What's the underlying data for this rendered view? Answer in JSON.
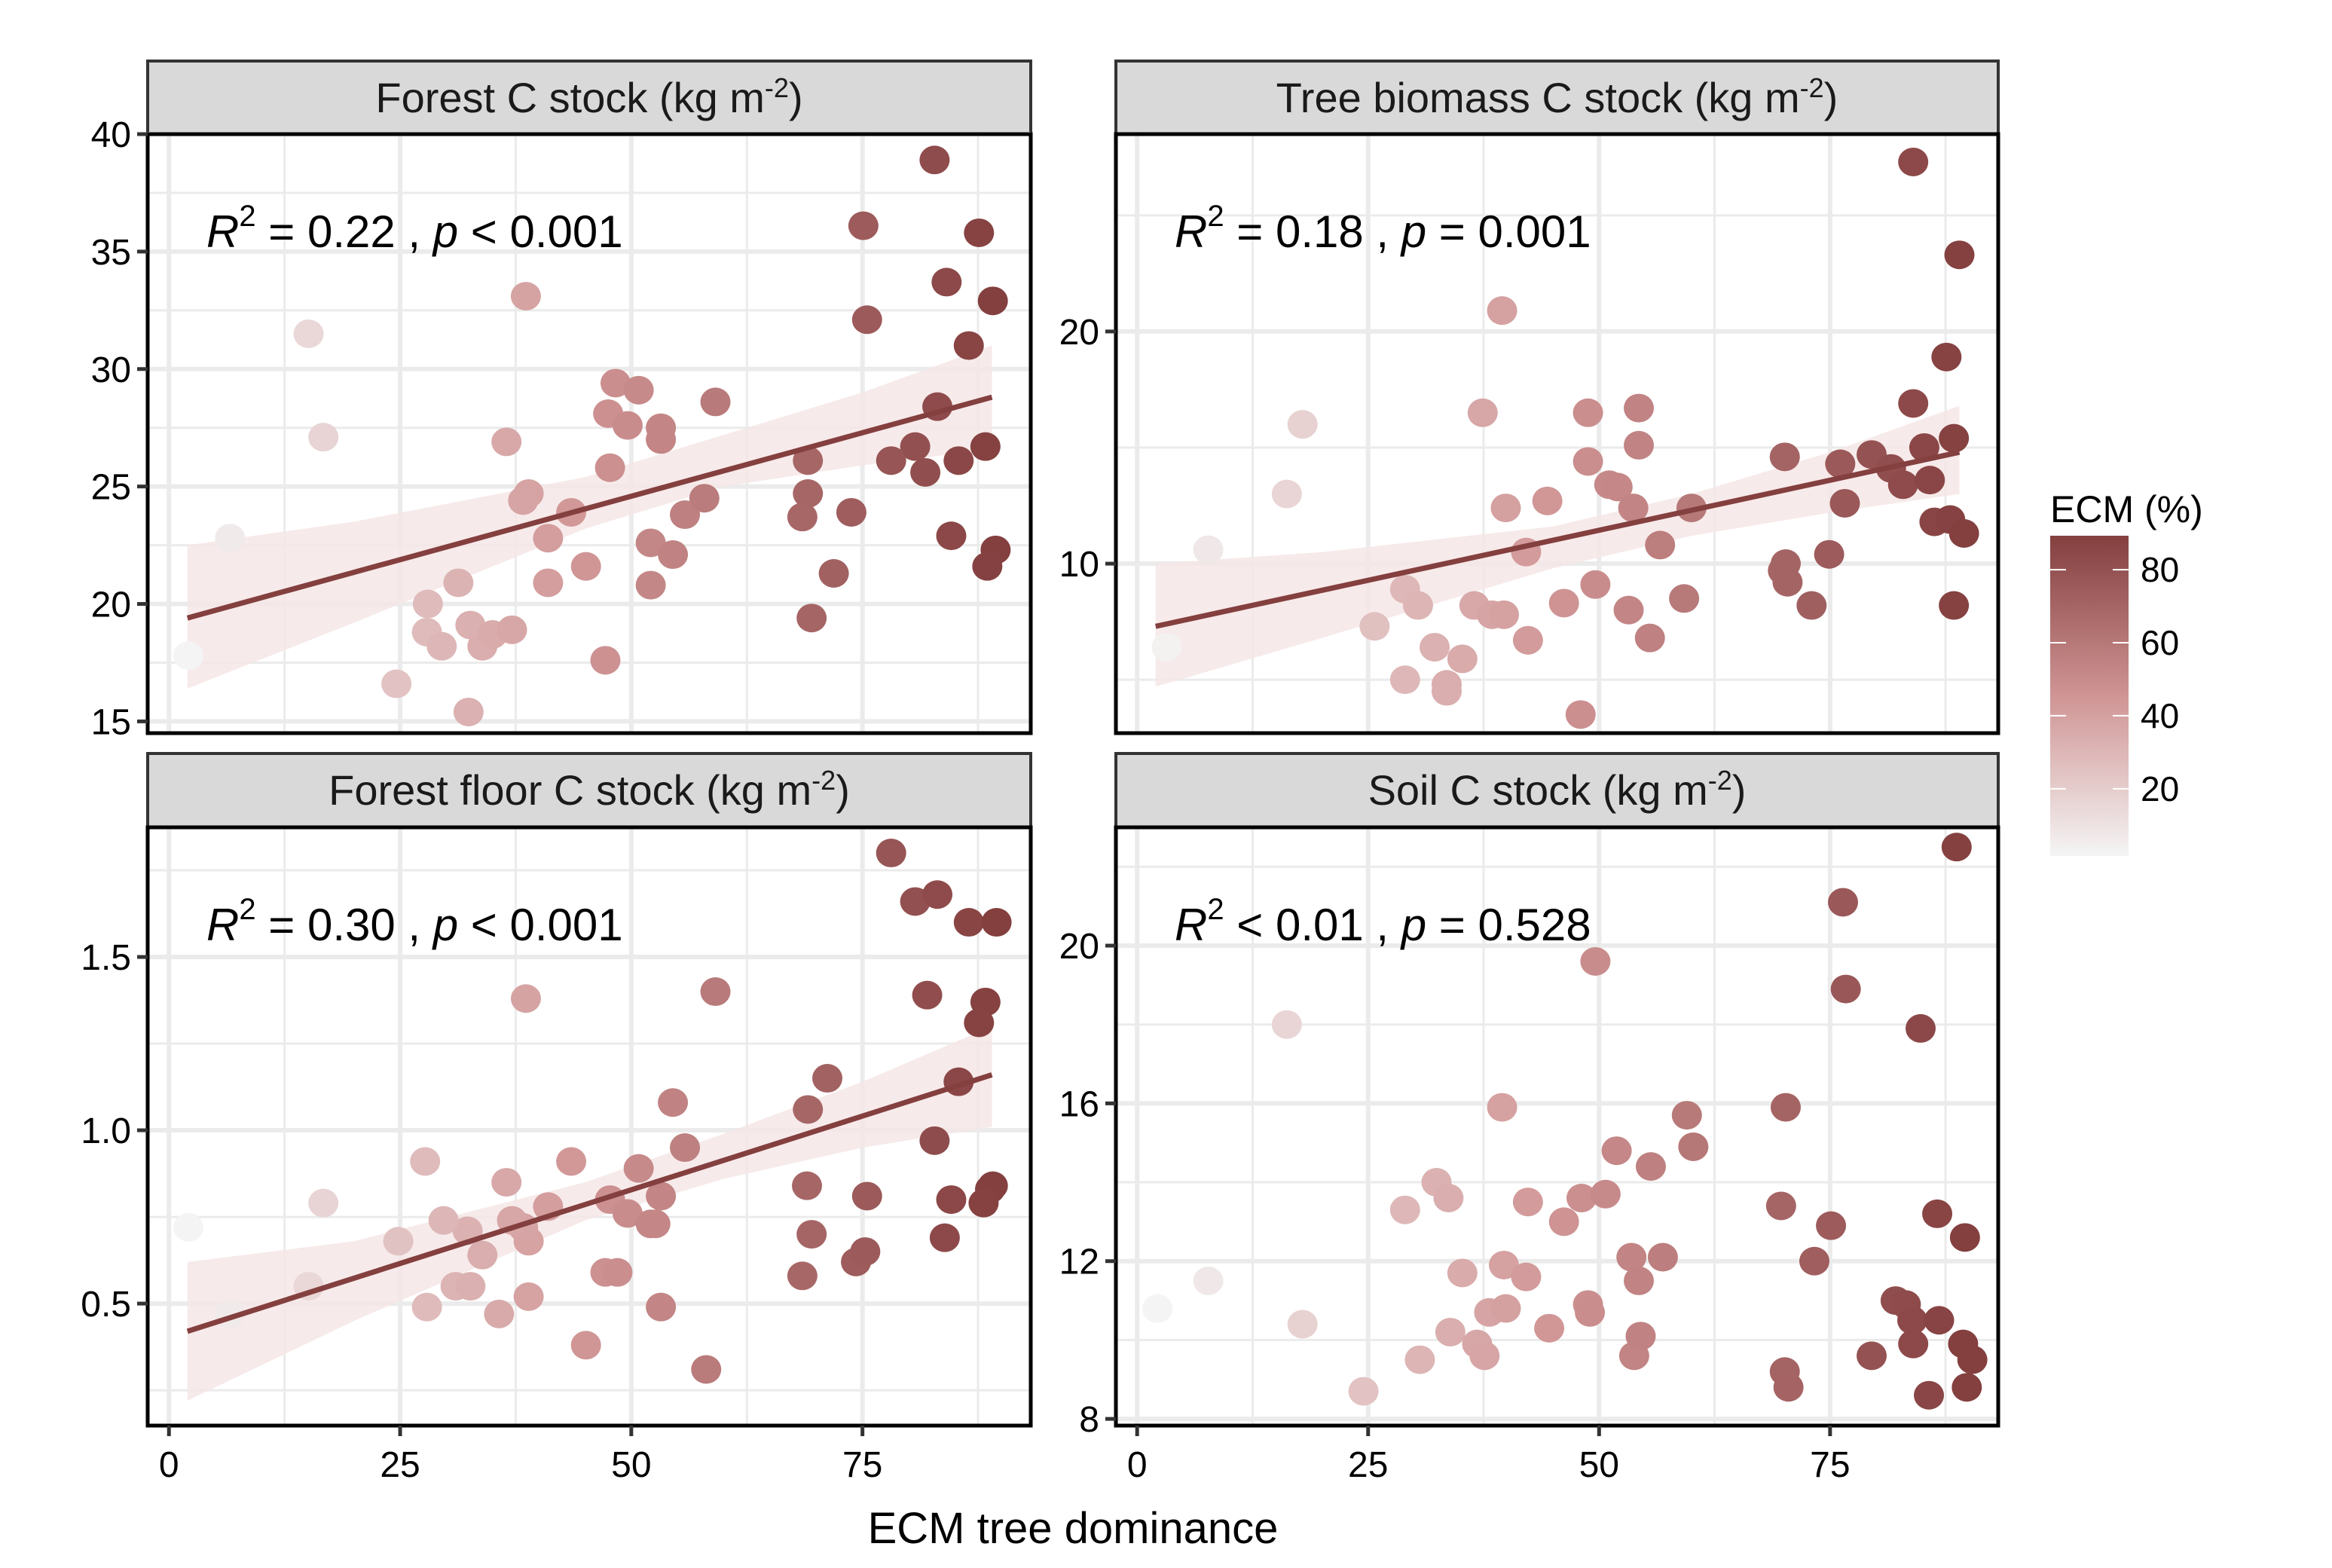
{
  "chart_data": {
    "type": "scatter",
    "layout": "facet-grid-2x2",
    "xlabel": "ECM tree dominance",
    "x_ticks": [
      0,
      25,
      50,
      75
    ],
    "xlim": [
      -2.3,
      93.2
    ],
    "grid": true,
    "color_legend": {
      "title": "ECM (%)",
      "ticks": [
        20,
        40,
        60,
        80
      ],
      "range": [
        1.6,
        89.3
      ],
      "low_color": "#f5f5f5",
      "mid_color": "#d09494",
      "high_color": "#843f3f",
      "placement": "right"
    },
    "fit_line_color": "#843f3f",
    "ci_band_color": "#f6e6e6",
    "panels": [
      {
        "id": "forest",
        "title": "Forest C stock (kg m",
        "title_sup": "-2",
        "title_end": ")",
        "ylim": [
          14.5,
          40.0
        ],
        "y_ticks": [
          15,
          20,
          25,
          30,
          35,
          40
        ],
        "y_tick_labels": [
          "15",
          "20",
          "25",
          "30",
          "35",
          "40"
        ],
        "stats": {
          "r2_op": "=",
          "r2": "0.22",
          "p_op": "<",
          "p": "0.001"
        },
        "fit": {
          "x": [
            2,
            89
          ],
          "y": [
            19.4,
            28.8
          ]
        },
        "ci": {
          "x": [
            2,
            20,
            45,
            60,
            75,
            89
          ],
          "lower": [
            16.4,
            19.2,
            23.2,
            25.0,
            25.9,
            26.6
          ],
          "upper": [
            22.5,
            23.5,
            25.4,
            27.2,
            29.0,
            31.0
          ]
        },
        "points": [
          [
            2.1,
            17.8
          ],
          [
            6.6,
            22.8
          ],
          [
            15.1,
            31.5
          ],
          [
            16.7,
            27.1
          ],
          [
            38.6,
            33.1
          ],
          [
            36.5,
            26.9
          ],
          [
            48.3,
            29.4
          ],
          [
            50.8,
            29.1
          ],
          [
            47.5,
            28.1
          ],
          [
            49.6,
            27.6
          ],
          [
            53.2,
            27.5
          ],
          [
            53.2,
            27.0
          ],
          [
            59.1,
            28.6
          ],
          [
            38.9,
            24.7
          ],
          [
            38.3,
            24.4
          ],
          [
            43.5,
            23.9
          ],
          [
            41.0,
            22.8
          ],
          [
            47.7,
            25.8
          ],
          [
            41.0,
            20.9
          ],
          [
            45.1,
            21.6
          ],
          [
            52.1,
            22.6
          ],
          [
            54.5,
            22.1
          ],
          [
            55.8,
            23.8
          ],
          [
            57.9,
            24.5
          ],
          [
            52.1,
            20.8
          ],
          [
            47.2,
            17.6
          ],
          [
            24.6,
            16.6
          ],
          [
            28.0,
            20.0
          ],
          [
            27.9,
            18.8
          ],
          [
            29.5,
            18.2
          ],
          [
            31.3,
            20.9
          ],
          [
            32.6,
            19.1
          ],
          [
            33.9,
            18.2
          ],
          [
            35.0,
            18.7
          ],
          [
            37.1,
            18.9
          ],
          [
            32.4,
            15.4
          ],
          [
            69.1,
            26.1
          ],
          [
            69.1,
            24.7
          ],
          [
            68.5,
            23.7
          ],
          [
            73.8,
            23.9
          ],
          [
            71.9,
            21.3
          ],
          [
            69.5,
            19.4
          ],
          [
            75.1,
            36.1
          ],
          [
            75.5,
            32.1
          ],
          [
            82.8,
            38.9
          ],
          [
            87.6,
            35.8
          ],
          [
            84.1,
            33.7
          ],
          [
            89.1,
            32.9
          ],
          [
            86.5,
            31.0
          ],
          [
            83.1,
            28.4
          ],
          [
            80.7,
            26.7
          ],
          [
            78.1,
            26.1
          ],
          [
            81.8,
            25.6
          ],
          [
            85.4,
            26.1
          ],
          [
            88.3,
            26.7
          ],
          [
            84.6,
            22.9
          ],
          [
            89.4,
            22.3
          ],
          [
            88.5,
            21.6
          ]
        ]
      },
      {
        "id": "tree",
        "title": "Tree biomass C stock (kg m",
        "title_sup": "-2",
        "title_end": ")",
        "ylim": [
          2.7,
          28.5
        ],
        "y_ticks": [
          10,
          20
        ],
        "y_tick_labels": [
          "10",
          "20"
        ],
        "minor_y": [
          5,
          15,
          25
        ],
        "stats": {
          "r2_op": "=",
          "r2": "0.18",
          "p_op": "=",
          "p": "0.001"
        },
        "fit": {
          "x": [
            2,
            89
          ],
          "y": [
            7.3,
            14.8
          ]
        },
        "ci": {
          "x": [
            2,
            20,
            45,
            60,
            75,
            89
          ],
          "lower": [
            4.7,
            6.8,
            9.8,
            11.2,
            12.2,
            13.0
          ],
          "upper": [
            10.0,
            10.5,
            11.6,
            13.0,
            14.8,
            16.8
          ]
        },
        "points": [
          [
            3.2,
            6.4
          ],
          [
            7.7,
            10.6
          ],
          [
            16.2,
            13.0
          ],
          [
            17.9,
            16.0
          ],
          [
            39.5,
            20.9
          ],
          [
            37.4,
            16.5
          ],
          [
            39.9,
            12.4
          ],
          [
            44.4,
            12.7
          ],
          [
            48.8,
            16.5
          ],
          [
            54.3,
            16.7
          ],
          [
            54.3,
            15.1
          ],
          [
            51.1,
            13.4
          ],
          [
            52.0,
            13.3
          ],
          [
            53.7,
            12.4
          ],
          [
            48.8,
            14.4
          ],
          [
            42.1,
            10.5
          ],
          [
            56.6,
            10.8
          ],
          [
            60.0,
            12.4
          ],
          [
            49.6,
            9.1
          ],
          [
            46.2,
            8.3
          ],
          [
            53.2,
            8.0
          ],
          [
            59.2,
            8.5
          ],
          [
            55.5,
            6.8
          ],
          [
            42.3,
            6.7
          ],
          [
            25.7,
            7.3
          ],
          [
            29.0,
            8.9
          ],
          [
            30.4,
            8.2
          ],
          [
            32.2,
            6.4
          ],
          [
            35.2,
            5.9
          ],
          [
            33.5,
            4.8
          ],
          [
            33.5,
            4.5
          ],
          [
            36.5,
            8.2
          ],
          [
            38.4,
            7.8
          ],
          [
            39.7,
            7.8
          ],
          [
            29.0,
            5.0
          ],
          [
            48.0,
            3.5
          ],
          [
            69.9,
            9.7
          ],
          [
            70.4,
            9.2
          ],
          [
            70.2,
            10.0
          ],
          [
            74.9,
            10.4
          ],
          [
            73.0,
            8.2
          ],
          [
            70.1,
            14.6
          ],
          [
            76.1,
            14.3
          ],
          [
            76.6,
            12.6
          ],
          [
            79.5,
            14.7
          ],
          [
            81.6,
            14.1
          ],
          [
            82.9,
            13.4
          ],
          [
            84.0,
            16.9
          ],
          [
            85.2,
            15.0
          ],
          [
            85.8,
            13.6
          ],
          [
            87.6,
            18.9
          ],
          [
            88.4,
            15.4
          ],
          [
            84.0,
            27.3
          ],
          [
            89.0,
            23.3
          ],
          [
            86.3,
            11.8
          ],
          [
            88.0,
            11.9
          ],
          [
            89.5,
            11.3
          ],
          [
            88.4,
            8.2
          ]
        ]
      },
      {
        "id": "floor",
        "title": "Forest floor C stock (kg m",
        "title_sup": "-2",
        "title_end": ")",
        "ylim": [
          0.148,
          1.874
        ],
        "y_ticks": [
          0.5,
          1.0,
          1.5
        ],
        "y_tick_labels": [
          "0.5",
          "1.0",
          "1.5"
        ],
        "minor_y": [
          0.25,
          0.75,
          1.25,
          1.75
        ],
        "stats": {
          "r2_op": "=",
          "r2": "0.30",
          "p_op": "<",
          "p": "0.001"
        },
        "fit": {
          "x": [
            2,
            89
          ],
          "y": [
            0.42,
            1.16
          ]
        },
        "ci": {
          "x": [
            2,
            20,
            45,
            60,
            75,
            89
          ],
          "lower": [
            0.22,
            0.45,
            0.74,
            0.86,
            0.95,
            1.01
          ],
          "upper": [
            0.62,
            0.68,
            0.85,
            0.99,
            1.14,
            1.3
          ]
        },
        "points": [
          [
            2.1,
            0.72
          ],
          [
            6.6,
            0.47
          ],
          [
            15.1,
            0.55
          ],
          [
            16.7,
            0.79
          ],
          [
            38.6,
            1.38
          ],
          [
            36.5,
            0.85
          ],
          [
            43.5,
            0.91
          ],
          [
            41.0,
            0.78
          ],
          [
            47.7,
            0.8
          ],
          [
            49.6,
            0.76
          ],
          [
            53.2,
            0.81
          ],
          [
            50.8,
            0.89
          ],
          [
            55.8,
            0.95
          ],
          [
            54.5,
            1.08
          ],
          [
            59.1,
            1.4
          ],
          [
            38.9,
            0.68
          ],
          [
            38.3,
            0.72
          ],
          [
            38.9,
            0.52
          ],
          [
            37.1,
            0.74
          ],
          [
            32.3,
            0.71
          ],
          [
            29.7,
            0.74
          ],
          [
            27.7,
            0.91
          ],
          [
            24.8,
            0.68
          ],
          [
            27.9,
            0.49
          ],
          [
            31.0,
            0.55
          ],
          [
            32.6,
            0.55
          ],
          [
            33.9,
            0.64
          ],
          [
            35.7,
            0.47
          ],
          [
            45.1,
            0.38
          ],
          [
            47.2,
            0.59
          ],
          [
            48.5,
            0.59
          ],
          [
            52.1,
            0.73
          ],
          [
            52.6,
            0.73
          ],
          [
            53.2,
            0.49
          ],
          [
            58.1,
            0.31
          ],
          [
            69.1,
            1.06
          ],
          [
            69.0,
            0.84
          ],
          [
            69.5,
            0.7
          ],
          [
            68.5,
            0.58
          ],
          [
            71.2,
            1.15
          ],
          [
            74.3,
            0.62
          ],
          [
            75.5,
            0.81
          ],
          [
            75.3,
            0.65
          ],
          [
            78.1,
            1.8
          ],
          [
            80.7,
            1.66
          ],
          [
            83.1,
            1.68
          ],
          [
            82.0,
            1.39
          ],
          [
            82.8,
            0.97
          ],
          [
            86.5,
            1.6
          ],
          [
            89.5,
            1.6
          ],
          [
            88.3,
            1.37
          ],
          [
            87.6,
            1.31
          ],
          [
            85.4,
            1.14
          ],
          [
            84.6,
            0.8
          ],
          [
            83.9,
            0.69
          ],
          [
            88.8,
            0.83
          ],
          [
            89.1,
            0.84
          ],
          [
            88.1,
            0.79
          ]
        ]
      },
      {
        "id": "soil",
        "title": "Soil C stock (kg m",
        "title_sup": "-2",
        "title_end": ")",
        "ylim": [
          7.83,
          23.0
        ],
        "y_ticks": [
          8,
          12,
          16,
          20
        ],
        "y_tick_labels": [
          "8",
          "12",
          "16",
          "20"
        ],
        "minor_y": [
          10,
          14,
          18,
          22
        ],
        "stats": {
          "r2_op": "<",
          "r2": "0.01",
          "p_op": "=",
          "p": "0.528"
        },
        "fit": null,
        "ci": null,
        "points": [
          [
            2.2,
            10.8
          ],
          [
            7.7,
            11.5
          ],
          [
            16.2,
            18.0
          ],
          [
            17.9,
            10.4
          ],
          [
            24.5,
            8.7
          ],
          [
            29.0,
            13.3
          ],
          [
            30.6,
            9.5
          ],
          [
            32.4,
            14.0
          ],
          [
            33.7,
            13.6
          ],
          [
            33.9,
            10.2
          ],
          [
            35.2,
            11.7
          ],
          [
            36.8,
            9.9
          ],
          [
            37.6,
            9.6
          ],
          [
            38.1,
            10.7
          ],
          [
            39.5,
            15.9
          ],
          [
            39.7,
            11.9
          ],
          [
            39.9,
            10.8
          ],
          [
            42.1,
            11.6
          ],
          [
            42.3,
            13.5
          ],
          [
            44.6,
            10.3
          ],
          [
            46.2,
            13.0
          ],
          [
            48.1,
            13.6
          ],
          [
            48.8,
            10.9
          ],
          [
            49.0,
            10.7
          ],
          [
            49.6,
            19.6
          ],
          [
            50.7,
            13.7
          ],
          [
            51.9,
            14.8
          ],
          [
            53.5,
            12.1
          ],
          [
            53.8,
            9.6
          ],
          [
            54.3,
            11.5
          ],
          [
            54.5,
            10.1
          ],
          [
            55.6,
            14.4
          ],
          [
            56.9,
            12.1
          ],
          [
            59.5,
            15.7
          ],
          [
            60.2,
            14.9
          ],
          [
            69.7,
            13.4
          ],
          [
            70.2,
            15.9
          ],
          [
            70.1,
            9.2
          ],
          [
            70.5,
            8.8
          ],
          [
            73.3,
            12.0
          ],
          [
            75.1,
            12.9
          ],
          [
            76.4,
            21.1
          ],
          [
            76.7,
            18.9
          ],
          [
            79.5,
            9.6
          ],
          [
            82.1,
            11.0
          ],
          [
            83.2,
            10.9
          ],
          [
            83.9,
            10.5
          ],
          [
            84.0,
            9.9
          ],
          [
            84.8,
            17.9
          ],
          [
            85.7,
            8.6
          ],
          [
            86.6,
            13.2
          ],
          [
            86.8,
            10.5
          ],
          [
            88.7,
            22.5
          ],
          [
            89.4,
            9.9
          ],
          [
            89.6,
            12.6
          ],
          [
            89.8,
            8.8
          ],
          [
            90.4,
            9.5
          ]
        ]
      }
    ]
  }
}
